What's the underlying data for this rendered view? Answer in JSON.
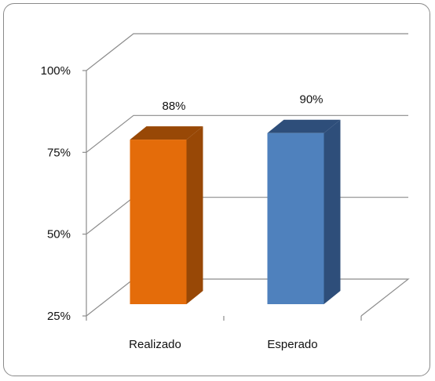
{
  "chart_data": {
    "type": "bar",
    "style": "3d-clustered-column",
    "categories": [
      "Realizado",
      "Esperado"
    ],
    "values": [
      88,
      90
    ],
    "data_labels": [
      "88%",
      "90%"
    ],
    "colors": [
      "#E46C0A",
      "#4F81BD"
    ],
    "side_colors": [
      "#984806",
      "#2E4E7A"
    ],
    "ylim": [
      25,
      100
    ],
    "yticks": [
      25,
      50,
      75,
      100
    ],
    "ytick_labels": [
      "25%",
      "50%",
      "75%",
      "100%"
    ],
    "grid": true,
    "title": "",
    "xlabel": "",
    "ylabel": ""
  }
}
